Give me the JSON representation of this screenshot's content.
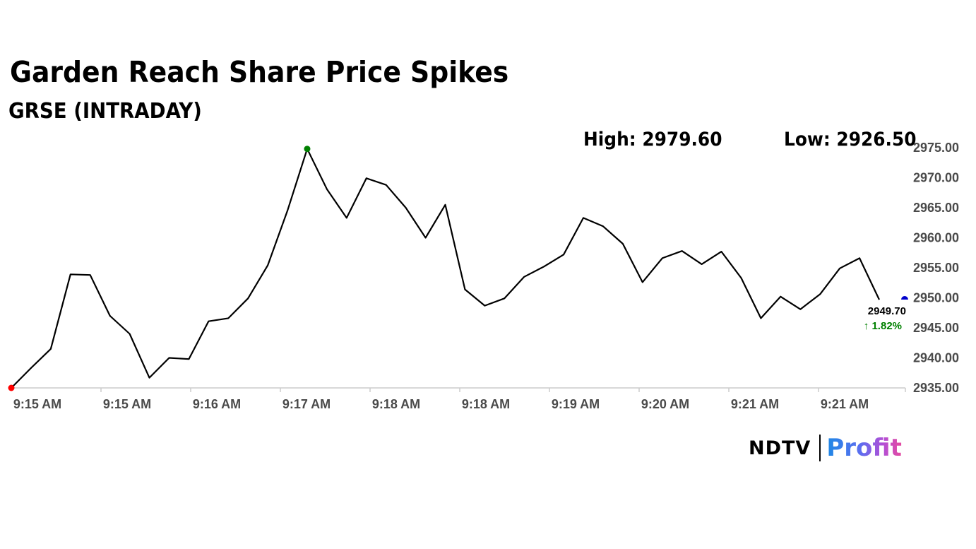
{
  "header": {
    "title": "Garden Reach Share Price Spikes",
    "subtitle": "GRSE (INTRADAY)"
  },
  "stats": {
    "high": "High: 2979.60",
    "low": "Low: 2926.50"
  },
  "last": {
    "price": "2949.70",
    "change": "↑ 1.82%"
  },
  "logo": {
    "ndtv": "NDTV",
    "profit": "Profit"
  },
  "colors": {
    "line": "#000000",
    "high_marker": "#008000",
    "low_marker": "#ff0000",
    "last_marker": "#0000cc",
    "change_positive": "#008000",
    "axis": "#cccccc"
  },
  "chart_data": {
    "type": "line",
    "title": "Garden Reach Share Price Spikes",
    "subtitle": "GRSE (INTRADAY)",
    "xlabel": "",
    "ylabel": "",
    "ylim": [
      2935,
      2975
    ],
    "y_ticks": [
      "2975.00",
      "2970.00",
      "2965.00",
      "2960.00",
      "2955.00",
      "2950.00",
      "2945.00",
      "2940.00",
      "2935.00"
    ],
    "x_ticks": [
      "9:15 AM",
      "9:15 AM",
      "9:16 AM",
      "9:17 AM",
      "9:18 AM",
      "9:18 AM",
      "9:19 AM",
      "9:20 AM",
      "9:21 AM",
      "9:21 AM"
    ],
    "grid": false,
    "legend": "none",
    "series": [
      {
        "values": [
          2935.0,
          2938.3,
          2941.5,
          2953.9,
          2953.8,
          2947.0,
          2944.0,
          2936.7,
          2940.0,
          2939.8,
          2946.1,
          2946.6,
          2949.9,
          2955.4,
          2964.5,
          2974.8,
          2968.1,
          2963.3,
          2969.9,
          2968.8,
          2965.0,
          2960.0,
          2965.5,
          2951.4,
          2948.7,
          2949.9,
          2953.5,
          2955.2,
          2957.2,
          2963.3,
          2961.9,
          2959.0,
          2952.6,
          2956.6,
          2957.8,
          2955.6,
          2957.7,
          2953.3,
          2946.6,
          2950.2,
          2948.1,
          2950.6,
          2954.9,
          2956.6,
          2949.7
        ]
      }
    ],
    "markers": {
      "low_point_index": 0,
      "high_point_index": 15,
      "last_value": 2949.7
    }
  }
}
